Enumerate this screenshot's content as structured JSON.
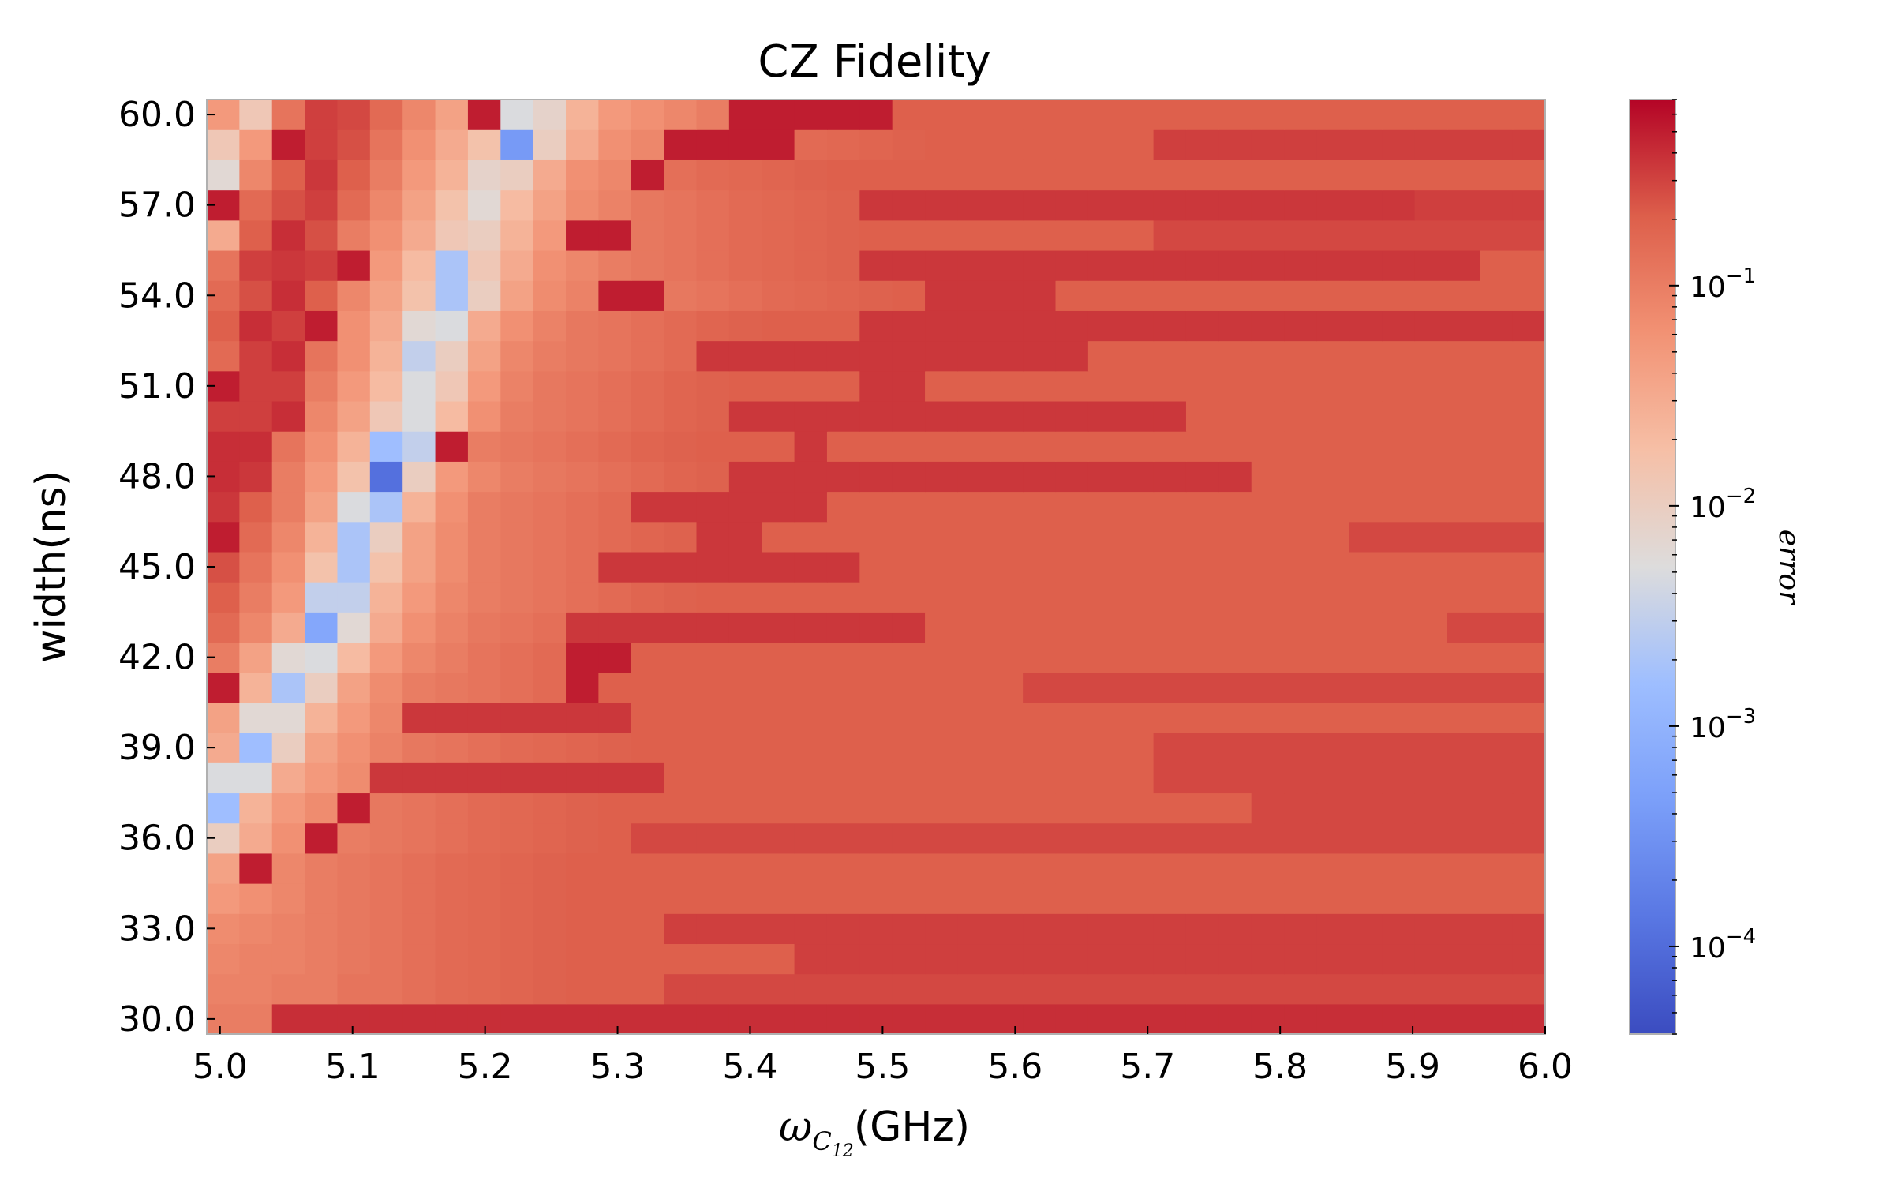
{
  "chart_data": {
    "type": "heatmap",
    "title": "CZ Fidelity",
    "xlabel_symbol": "ω",
    "xlabel_sub": "C",
    "xlabel_subsub": "12",
    "xlabel_unit": "(GHz)",
    "ylabel": "width(ns)",
    "colorbar_label": "error",
    "colormap": "coolwarm",
    "color_scale": "log",
    "color_range": [
      4e-05,
      0.7
    ],
    "xlim": [
      4.99,
      6.0
    ],
    "ylim": [
      29.5,
      60.5
    ],
    "x_ticks": [
      "5.0",
      "5.1",
      "5.2",
      "5.3",
      "5.4",
      "5.5",
      "5.6",
      "5.7",
      "5.8",
      "5.9",
      "6.0"
    ],
    "x_tick_values": [
      5.0,
      5.1,
      5.2,
      5.3,
      5.4,
      5.5,
      5.6,
      5.7,
      5.8,
      5.9,
      6.0
    ],
    "y_ticks": [
      "30.0",
      "33.0",
      "36.0",
      "39.0",
      "42.0",
      "45.0",
      "48.0",
      "51.0",
      "54.0",
      "57.0",
      "60.0"
    ],
    "y_tick_values": [
      30,
      33,
      36,
      39,
      42,
      45,
      48,
      51,
      54,
      57,
      60
    ],
    "colorbar_ticks": [
      {
        "base": "10",
        "exp": "−1",
        "value": 0.1
      },
      {
        "base": "10",
        "exp": "−2",
        "value": 0.01
      },
      {
        "base": "10",
        "exp": "−3",
        "value": 0.001
      },
      {
        "base": "10",
        "exp": "−4",
        "value": 0.0001
      }
    ],
    "n_cols": 41,
    "n_rows": 31,
    "x_values": "41 steps from 4.99 to 6.0 GHz (step 0.025)",
    "y_values": [
      30,
      31,
      32,
      33,
      34,
      35,
      36,
      37,
      38,
      39,
      40,
      41,
      42,
      43,
      44,
      45,
      46,
      47,
      48,
      49,
      50,
      51,
      52,
      53,
      54,
      55,
      56,
      57,
      58,
      59,
      60
    ],
    "error_log10_rows_bottom_to_top": [
      "-1.00 -1.00 -0.40 -0.40 -0.40 -0.40 -0.40 -0.40 -0.40 -0.40 -0.40 -0.40 -0.40 -0.40 -0.40 -0.40 -0.40 -0.40 -0.40 -0.40 -0.40 -0.40 -0.40 -0.40 -0.40 -0.40 -0.40 -0.40 -0.40 -0.40 -0.40 -0.40 -0.40 -0.40 -0.40 -0.40 -0.40 -0.40 -0.40 -0.40 -0.40",
      "-1.05 -1.05 -1.00 -1.00 -0.90 -0.90 -0.85 -0.80 -0.78 -0.75 -0.72 -0.70 -0.70 -0.70 -0.55 -0.55 -0.55 -0.55 -0.55 -0.55 -0.55 -0.55 -0.55 -0.55 -0.55 -0.55 -0.55 -0.55 -0.55 -0.55 -0.55 -0.55 -0.55 -0.55 -0.55 -0.55 -0.55 -0.55 -0.55 -0.55 -0.55",
      "-1.10 -1.05 -1.05 -1.00 -0.95 -0.90 -0.85 -0.80 -0.78 -0.75 -0.72 -0.70 -0.70 -0.70 -0.70 -0.70 -0.70 -0.70 -0.50 -0.50 -0.50 -0.50 -0.50 -0.50 -0.50 -0.50 -0.50 -0.50 -0.50 -0.50 -0.50 -0.50 -0.50 -0.50 -0.50 -0.50 -0.50 -0.50 -0.50 -0.50 -0.50",
      "-1.15 -1.10 -1.05 -1.00 -0.95 -0.90 -0.85 -0.80 -0.78 -0.75 -0.72 -0.70 -0.70 -0.70 -0.50 -0.50 -0.50 -0.50 -0.50 -0.50 -0.50 -0.50 -0.50 -0.50 -0.50 -0.50 -0.50 -0.50 -0.50 -0.50 -0.50 -0.50 -0.50 -0.50 -0.50 -0.50 -0.50 -0.50 -0.50 -0.50 -0.50",
      "-1.30 -1.20 -1.10 -1.00 -0.95 -0.90 -0.85 -0.80 -0.78 -0.75 -0.72 -0.70 -0.70 -0.70 -0.70 -0.70 -0.70 -0.70 -0.70 -0.70 -0.70 -0.70 -0.70 -0.70 -0.70 -0.70 -0.70 -0.70 -0.70 -0.70 -0.70 -0.70 -0.70 -0.70 -0.70 -0.70 -0.70 -0.70 -0.70 -0.70 -0.70",
      "-1.40 -0.30 -1.10 -1.00 -0.95 -0.90 -0.85 -0.80 -0.78 -0.75 -0.72 -0.70 -0.70 -0.70 -0.70 -0.70 -0.70 -0.70 -0.70 -0.70 -0.70 -0.70 -0.70 -0.70 -0.70 -0.70 -0.70 -0.70 -0.70 -0.70 -0.70 -0.70 -0.70 -0.70 -0.70 -0.70 -0.70 -0.70 -0.70 -0.70 -0.70",
      "-2.00 -1.50 -1.20 -0.30 -1.00 -0.95 -0.90 -0.85 -0.80 -0.78 -0.75 -0.72 -0.70 -0.55 -0.55 -0.55 -0.55 -0.55 -0.55 -0.55 -0.55 -0.55 -0.55 -0.55 -0.55 -0.55 -0.55 -0.55 -0.55 -0.55 -0.55 -0.55 -0.55 -0.55 -0.55 -0.55 -0.55 -0.55 -0.55 -0.55 -0.55",
      "-2.80 -1.60 -1.30 -1.15 -0.30 -0.95 -0.90 -0.85 -0.80 -0.78 -0.75 -0.72 -0.70 -0.70 -0.70 -0.70 -0.70 -0.70 -0.70 -0.70 -0.70 -0.70 -0.70 -0.70 -0.70 -0.70 -0.70 -0.70 -0.70 -0.70 -0.70 -0.70 -0.55 -0.55 -0.55 -0.55 -0.55 -0.55 -0.55 -0.55 -0.55",
      "-2.30 -2.30 -1.50 -1.30 -1.15 -0.45 -0.45 -0.45 -0.45 -0.45 -0.45 -0.45 -0.45 -0.45 -0.70 -0.70 -0.70 -0.70 -0.70 -0.70 -0.70 -0.70 -0.70 -0.70 -0.70 -0.70 -0.70 -0.70 -0.70 -0.55 -0.55 -0.55 -0.55 -0.55 -0.55 -0.55 -0.55 -0.55 -0.55 -0.55 -0.55",
      "-1.50 -2.80 -2.00 -1.40 -1.20 -1.05 -0.95 -0.90 -0.85 -0.80 -0.78 -0.75 -0.72 -0.70 -0.70 -0.70 -0.70 -0.70 -0.70 -0.70 -0.70 -0.70 -0.70 -0.70 -0.70 -0.70 -0.70 -0.70 -0.70 -0.55 -0.55 -0.55 -0.55 -0.55 -0.55 -0.55 -0.55 -0.55 -0.55 -0.55 -0.55",
      "-1.40 -2.20 -2.20 -1.60 -1.30 -1.10 -0.45 -0.45 -0.45 -0.45 -0.45 -0.45 -0.45 -0.70 -0.70 -0.70 -0.70 -0.70 -0.70 -0.70 -0.70 -0.70 -0.70 -0.70 -0.70 -0.70 -0.70 -0.70 -0.70 -0.70 -0.70 -0.70 -0.70 -0.70 -0.70 -0.70 -0.70 -0.70 -0.70 -0.70 -0.70",
      "-0.30 -1.60 -2.70 -2.00 -1.40 -1.15 -1.00 -0.95 -0.90 -0.85 -0.80 -0.30 -0.70 -0.70 -0.70 -0.70 -0.70 -0.70 -0.70 -0.70 -0.70 -0.70 -0.70 -0.70 -0.70 -0.55 -0.55 -0.55 -0.55 -0.55 -0.55 -0.55 -0.55 -0.55 -0.55 -0.55 -0.55 -0.55 -0.55 -0.55 -0.55",
      "-1.00 -1.40 -2.20 -2.30 -1.70 -1.30 -1.10 -1.00 -0.90 -0.85 -0.80 -0.30 -0.30 -0.70 -0.70 -0.70 -0.70 -0.70 -0.70 -0.70 -0.70 -0.70 -0.70 -0.70 -0.70 -0.70 -0.70 -0.70 -0.70 -0.70 -0.70 -0.70 -0.70 -0.70 -0.70 -0.70 -0.70 -0.70 -0.70 -0.70 -0.70",
      "-0.80 -1.10 -1.50 -3.20 -2.20 -1.50 -1.20 -1.05 -0.95 -0.90 -0.85 -0.45 -0.45 -0.45 -0.45 -0.45 -0.45 -0.45 -0.45 -0.45 -0.45 -0.45 -0.70 -0.70 -0.70 -0.70 -0.70 -0.70 -0.70 -0.70 -0.70 -0.70 -0.70 -0.70 -0.70 -0.70 -0.70 -0.70 -0.55 -0.55 -0.55",
      "-0.70 -1.00 -1.30 -2.50 -2.50 -1.60 -1.30 -1.10 -1.00 -0.95 -0.90 -0.85 -0.80 -0.75 -0.72 -0.70 -0.70 -0.70 -0.70 -0.70 -0.70 -0.70 -0.70 -0.70 -0.70 -0.70 -0.70 -0.70 -0.70 -0.70 -0.70 -0.70 -0.70 -0.70 -0.70 -0.70 -0.70 -0.70 -0.70 -0.70 -0.70",
      "-0.60 -0.90 -1.20 -1.80 -2.70 -1.80 -1.40 -1.15 -1.00 -0.95 -0.90 -0.85 -0.45 -0.45 -0.45 -0.45 -0.45 -0.45 -0.45 -0.45 -0.70 -0.70 -0.70 -0.70 -0.70 -0.70 -0.70 -0.70 -0.70 -0.70 -0.70 -0.70 -0.70 -0.70 -0.70 -0.70 -0.70 -0.70 -0.70 -0.70 -0.70",
      "-0.30 -0.80 -1.10 -1.60 -2.70 -2.00 -1.40 -1.15 -1.00 -0.95 -0.90 -0.85 -0.80 -0.75 -0.72 -0.45 -0.45 -0.70 -0.70 -0.70 -0.70 -0.70 -0.70 -0.70 -0.70 -0.70 -0.70 -0.70 -0.70 -0.70 -0.70 -0.70 -0.70 -0.70 -0.70 -0.55 -0.55 -0.55 -0.55 -0.55 -0.55",
      "-0.45 -0.70 -1.00 -1.40 -2.30 -2.70 -1.60 -1.20 -1.00 -0.95 -0.90 -0.85 -0.80 -0.45 -0.45 -0.45 -0.45 -0.45 -0.45 -0.70 -0.70 -0.70 -0.70 -0.70 -0.70 -0.70 -0.70 -0.70 -0.70 -0.70 -0.70 -0.70 -0.70 -0.70 -0.70 -0.70 -0.70 -0.70 -0.70 -0.70 -0.70",
      "-0.40 -0.45 -1.00 -1.30 -1.80 -3.95 -2.00 -1.30 -1.10 -1.00 -0.95 -0.90 -0.85 -0.80 -0.75 -0.72 -0.45 -0.45 -0.45 -0.45 -0.45 -0.45 -0.45 -0.45 -0.45 -0.45 -0.45 -0.45 -0.45 -0.45 -0.45 -0.45 -0.70 -0.70 -0.70 -0.70 -0.70 -0.70 -0.70 -0.70 -0.70",
      "-0.40 -0.40 -0.90 -1.20 -1.60 -2.80 -2.50 -0.30 -1.00 -0.95 -0.90 -0.85 -0.80 -0.75 -0.72 -0.70 -0.70 -0.70 -0.45 -0.70 -0.70 -0.70 -0.70 -0.70 -0.70 -0.70 -0.70 -0.70 -0.70 -0.70 -0.70 -0.70 -0.70 -0.70 -0.70 -0.70 -0.70 -0.70 -0.70 -0.70 -0.70",
      "-0.50 -0.50 -0.40 -1.10 -1.40 -1.90 -2.30 -1.70 -1.20 -1.00 -0.95 -0.90 -0.85 -0.80 -0.75 -0.72 -0.45 -0.45 -0.45 -0.45 -0.45 -0.45 -0.45 -0.45 -0.45 -0.45 -0.45 -0.45 -0.45 -0.45 -0.70 -0.70 -0.70 -0.70 -0.70 -0.70 -0.70 -0.70 -0.70 -0.70 -0.70",
      "-0.30 -0.50 -0.50 -1.00 -1.30 -1.70 -2.30 -1.90 -1.30 -1.05 -0.95 -0.90 -0.85 -0.80 -0.75 -0.72 -0.70 -0.70 -0.70 -0.70 -0.45 -0.45 -0.70 -0.70 -0.70 -0.70 -0.70 -0.70 -0.70 -0.70 -0.70 -0.70 -0.70 -0.70 -0.70 -0.70 -0.70 -0.70 -0.70 -0.70 -0.70",
      "-0.80 -0.50 -0.40 -0.90 -1.20 -1.60 -2.50 -2.00 -1.40 -1.10 -1.00 -0.95 -0.90 -0.85 -0.80 -0.45 -0.45 -0.45 -0.45 -0.45 -0.45 -0.45 -0.45 -0.45 -0.45 -0.45 -0.45 -0.70 -0.70 -0.70 -0.70 -0.70 -0.70 -0.70 -0.70 -0.70 -0.70 -0.70 -0.70 -0.70 -0.70",
      "-0.70 -0.40 -0.50 -0.30 -1.20 -1.50 -2.20 -2.30 -1.50 -1.20 -1.05 -0.95 -0.90 -0.85 -0.80 -0.75 -0.72 -0.70 -0.70 -0.70 -0.45 -0.45 -0.45 -0.45 -0.45 -0.45 -0.45 -0.45 -0.45 -0.45 -0.45 -0.45 -0.45 -0.45 -0.45 -0.45 -0.45 -0.45 -0.45 -0.45 -0.45",
      "-0.80 -0.60 -0.40 -0.70 -1.10 -1.40 -1.80 -2.70 -2.00 -1.40 -1.15 -1.05 -0.30 -0.30 -0.95 -0.90 -0.85 -0.80 -0.78 -0.75 -0.72 -0.70 -0.45 -0.45 -0.45 -0.45 -0.70 -0.70 -0.70 -0.70 -0.70 -0.70 -0.70 -0.70 -0.70 -0.70 -0.70 -0.70 -0.70 -0.70 -0.70",
      "-0.90 -0.50 -0.45 -0.50 -0.30 -1.30 -1.70 -2.70 -1.90 -1.50 -1.20 -1.10 -1.00 -0.95 -0.90 -0.85 -0.80 -0.78 -0.75 -0.72 -0.45 -0.45 -0.45 -0.45 -0.45 -0.45 -0.45 -0.45 -0.45 -0.45 -0.45 -0.45 -0.45 -0.45 -0.45 -0.45 -0.45 -0.45 -0.45 -0.70 -0.70",
      "-1.50 -0.70 -0.40 -0.60 -1.00 -1.20 -1.50 -1.90 -2.00 -1.60 -1.30 -0.30 -0.30 -0.95 -0.90 -0.85 -0.80 -0.78 -0.75 -0.72 -0.70 -0.70 -0.70 -0.70 -0.70 -0.70 -0.70 -0.70 -0.70 -0.55 -0.55 -0.55 -0.55 -0.55 -0.55 -0.55 -0.55 -0.55 -0.55 -0.55 -0.55",
      "-0.30 -0.80 -0.60 -0.50 -0.80 -1.10 -1.40 -1.80 -2.20 -1.70 -1.40 -1.15 -1.05 -0.95 -0.90 -0.85 -0.80 -0.78 -0.75 -0.72 -0.45 -0.45 -0.45 -0.45 -0.45 -0.45 -0.45 -0.45 -0.45 -0.45 -0.45 -0.45 -0.45 -0.45 -0.45 -0.45 -0.45 -0.50 -0.50 -0.50 -0.50",
      "-2.20 -1.10 -0.70 -0.45 -0.70 -1.00 -1.30 -1.60 -2.10 -2.00 -1.50 -1.20 -1.10 -0.30 -0.85 -0.80 -0.78 -0.75 -0.72 -0.70 -0.70 -0.70 -0.70 -0.70 -0.70 -0.70 -0.70 -0.70 -0.70 -0.70 -0.70 -0.70 -0.70 -0.70 -0.70 -0.70 -0.70 -0.70 -0.70 -0.70 -0.70",
      "-1.90 -1.30 -0.30 -0.50 -0.60 -0.90 -1.20 -1.50 -1.80 -3.40 -2.00 -1.50 -1.20 -1.10 -0.30 -0.30 -0.30 -0.30 -0.80 -0.78 -0.75 -0.72 -0.70 -0.70 -0.70 -0.70 -0.70 -0.70 -0.70 -0.50 -0.50 -0.50 -0.50 -0.50 -0.50 -0.50 -0.50 -0.50 -0.50 -0.50 -0.50",
      "-1.30 -1.90 -0.90 -0.50 -0.55 -0.80 -1.10 -1.40 -0.30 -2.30 -2.10 -1.60 -1.30 -1.20 -1.10 -1.00 -0.30 -0.30 -0.30 -0.30 -0.30 -0.70 -0.70 -0.70 -0.70 -0.70 -0.70 -0.70 -0.70 -0.70 -0.70 -0.70 -0.70 -0.70 -0.70 -0.70 -0.70 -0.70 -0.70 -0.70 -0.70"
    ]
  }
}
